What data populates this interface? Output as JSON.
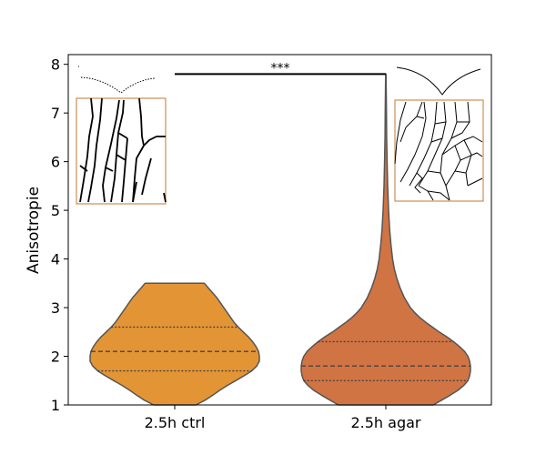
{
  "chart_data": {
    "type": "violin",
    "categories": [
      "2.5h ctrl",
      "2.5h agar"
    ],
    "ylabel": "Anisotropie",
    "xlabel": "",
    "ylim": [
      1,
      8.2
    ],
    "yticks": [
      1,
      2,
      3,
      4,
      5,
      6,
      7,
      8
    ],
    "grid": false,
    "series": [
      {
        "category": "2.5h ctrl",
        "color": "#E39535",
        "min": 1.0,
        "max": 3.5,
        "q1": 1.7,
        "median": 2.1,
        "q3": 2.6,
        "profile": [
          [
            1.0,
            0.25
          ],
          [
            1.1,
            0.36
          ],
          [
            1.2,
            0.45
          ],
          [
            1.3,
            0.53
          ],
          [
            1.4,
            0.62
          ],
          [
            1.5,
            0.72
          ],
          [
            1.6,
            0.82
          ],
          [
            1.7,
            0.91
          ],
          [
            1.8,
            0.97
          ],
          [
            1.9,
            1.0
          ],
          [
            2.0,
            1.0
          ],
          [
            2.1,
            0.99
          ],
          [
            2.2,
            0.96
          ],
          [
            2.3,
            0.92
          ],
          [
            2.4,
            0.87
          ],
          [
            2.5,
            0.81
          ],
          [
            2.6,
            0.75
          ],
          [
            2.7,
            0.7
          ],
          [
            2.8,
            0.66
          ],
          [
            2.9,
            0.62
          ],
          [
            3.0,
            0.58
          ],
          [
            3.1,
            0.54
          ],
          [
            3.2,
            0.5
          ],
          [
            3.3,
            0.45
          ],
          [
            3.4,
            0.4
          ],
          [
            3.5,
            0.35
          ]
        ]
      },
      {
        "category": "2.5h agar",
        "color": "#D17443",
        "min": 1.0,
        "max": 7.8,
        "q1": 1.5,
        "median": 1.8,
        "q3": 2.3,
        "profile": [
          [
            1.0,
            0.56
          ],
          [
            1.1,
            0.66
          ],
          [
            1.2,
            0.76
          ],
          [
            1.3,
            0.85
          ],
          [
            1.4,
            0.92
          ],
          [
            1.5,
            0.97
          ],
          [
            1.6,
            0.99
          ],
          [
            1.7,
            1.0
          ],
          [
            1.8,
            1.0
          ],
          [
            1.9,
            0.99
          ],
          [
            2.0,
            0.97
          ],
          [
            2.1,
            0.93
          ],
          [
            2.2,
            0.87
          ],
          [
            2.3,
            0.8
          ],
          [
            2.4,
            0.72
          ],
          [
            2.5,
            0.63
          ],
          [
            2.6,
            0.55
          ],
          [
            2.7,
            0.47
          ],
          [
            2.8,
            0.4
          ],
          [
            2.9,
            0.34
          ],
          [
            3.0,
            0.29
          ],
          [
            3.2,
            0.22
          ],
          [
            3.4,
            0.17
          ],
          [
            3.6,
            0.13
          ],
          [
            3.8,
            0.1
          ],
          [
            4.0,
            0.08
          ],
          [
            4.3,
            0.06
          ],
          [
            4.6,
            0.045
          ],
          [
            5.0,
            0.032
          ],
          [
            5.5,
            0.022
          ],
          [
            6.0,
            0.015
          ],
          [
            6.5,
            0.01
          ],
          [
            7.0,
            0.007
          ],
          [
            7.5,
            0.004
          ],
          [
            7.8,
            0.002
          ]
        ]
      }
    ],
    "significance": {
      "from": "2.5h ctrl",
      "to": "2.5h agar",
      "y": 7.8,
      "label": "***"
    }
  },
  "insets": [
    {
      "name": "ctrl-cell-outline-inset",
      "frame_color": "#C07A30"
    },
    {
      "name": "agar-cell-outline-inset",
      "frame_color": "#C07A30"
    }
  ]
}
